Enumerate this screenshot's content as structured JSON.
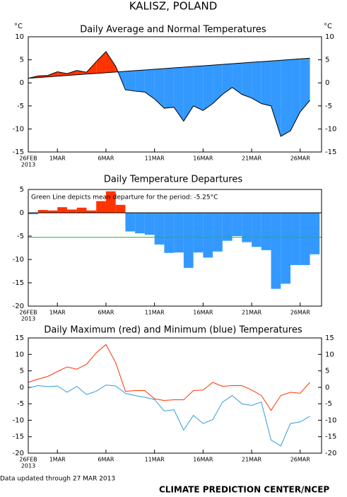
{
  "title": "KALISZ, POLAND",
  "footer_note": "Data updated through 27 MAR 2013",
  "footer_credit": "CLIMATE PREDICTION CENTER/NCEP",
  "chart_data": [
    {
      "type": "area-diff",
      "title": "Daily Average and Normal Temperatures",
      "y_unit": "°C",
      "right_axis": true,
      "categories": [
        "26FEB",
        null,
        null,
        "1MAR",
        null,
        null,
        null,
        null,
        "6MAR",
        null,
        null,
        null,
        null,
        "11MAR",
        null,
        null,
        null,
        null,
        "16MAR",
        null,
        null,
        null,
        null,
        "21MAR",
        null,
        null,
        null,
        null,
        "26MAR",
        null
      ],
      "x_year": "2013",
      "values": [
        1.0,
        1.5,
        1.6,
        2.4,
        2.0,
        2.7,
        2.3,
        4.6,
        6.8,
        3.6,
        -1.5,
        -1.8,
        -2.0,
        -3.5,
        -5.5,
        -5.3,
        -8.3,
        -5.0,
        -6.0,
        -4.5,
        -2.5,
        -1.0,
        -2.5,
        -3.3,
        -4.5,
        -5.0,
        -11.6,
        -10.4,
        -6.3,
        -3.8
      ],
      "normal": [
        1.0,
        1.15,
        1.3,
        1.45,
        1.6,
        1.75,
        1.9,
        2.05,
        2.2,
        2.35,
        2.5,
        2.65,
        2.8,
        2.95,
        3.1,
        3.25,
        3.4,
        3.55,
        3.7,
        3.85,
        4.0,
        4.15,
        4.3,
        4.45,
        4.6,
        4.75,
        4.9,
        5.05,
        5.2,
        5.35
      ],
      "above_color": "#ff3300",
      "below_color": "#3399ff",
      "ylim": [
        -15,
        10
      ],
      "yticks": [
        -15,
        -10,
        -5,
        0,
        5,
        10
      ]
    },
    {
      "type": "bar",
      "title": "Daily Temperature Departures",
      "right_axis": false,
      "zero_line": true,
      "categories": [
        "26FEB",
        null,
        null,
        "1MAR",
        null,
        null,
        null,
        null,
        "6MAR",
        null,
        null,
        null,
        null,
        "11MAR",
        null,
        null,
        null,
        null,
        "16MAR",
        null,
        null,
        null,
        null,
        "21MAR",
        null,
        null,
        null,
        null,
        "26MAR",
        null
      ],
      "x_year": "2013",
      "values": [
        -0.3,
        0.6,
        0.5,
        1.2,
        0.7,
        1.1,
        0.5,
        2.5,
        4.6,
        1.7,
        -4.0,
        -4.4,
        -4.7,
        -6.8,
        -8.6,
        -8.5,
        -11.8,
        -8.5,
        -9.6,
        -8.3,
        -6.0,
        -5.0,
        -6.3,
        -7.3,
        -8.0,
        -16.3,
        -15.2,
        -11.2,
        -11.2,
        -8.9
      ],
      "positive_color": "#ff3300",
      "negative_color": "#3399ff",
      "mean": -5.25,
      "mean_color": "#22bb22",
      "annotation": "Green Line depicts mean departure for the period: -5.25°C",
      "ylim": [
        -20,
        5
      ],
      "yticks": [
        -20,
        -15,
        -10,
        -5,
        0,
        5
      ]
    },
    {
      "type": "line",
      "title": "Daily Maximum (red) and Minimum (blue) Temperatures",
      "right_axis": true,
      "categories": [
        "26FEB",
        null,
        null,
        "1MAR",
        null,
        null,
        null,
        null,
        "6MAR",
        null,
        null,
        null,
        null,
        "11MAR",
        null,
        null,
        null,
        null,
        "16MAR",
        null,
        null,
        null,
        null,
        "21MAR",
        null,
        null,
        null,
        null,
        "26MAR",
        null
      ],
      "x_year": "2013",
      "series": [
        {
          "color": "#ff3300",
          "values": [
            1.5,
            2.5,
            3.3,
            4.8,
            6.2,
            5.5,
            7.0,
            10.5,
            13.0,
            7.5,
            -1.2,
            -1.0,
            -1.0,
            -3.5,
            -4.0,
            -3.8,
            -3.8,
            -1.0,
            -0.8,
            1.5,
            0.3,
            0.5,
            0.5,
            -0.8,
            -2.5,
            -7.0,
            -2.5,
            -1.5,
            -1.8,
            1.5
          ]
        },
        {
          "color": "#3399dd",
          "values": [
            -0.2,
            0.5,
            0.2,
            0.4,
            -1.5,
            0.3,
            -2.2,
            -1.2,
            0.7,
            0.4,
            -1.8,
            -2.5,
            -3.0,
            -3.7,
            -7.2,
            -6.8,
            -13.0,
            -8.5,
            -11.0,
            -9.8,
            -4.5,
            -2.5,
            -5.0,
            -5.5,
            -4.5,
            -16.0,
            -17.8,
            -11.0,
            -10.5,
            -8.8
          ]
        }
      ],
      "ylim": [
        -20,
        15
      ],
      "yticks": [
        -20,
        -15,
        -10,
        -5,
        0,
        5,
        10,
        15
      ]
    }
  ]
}
